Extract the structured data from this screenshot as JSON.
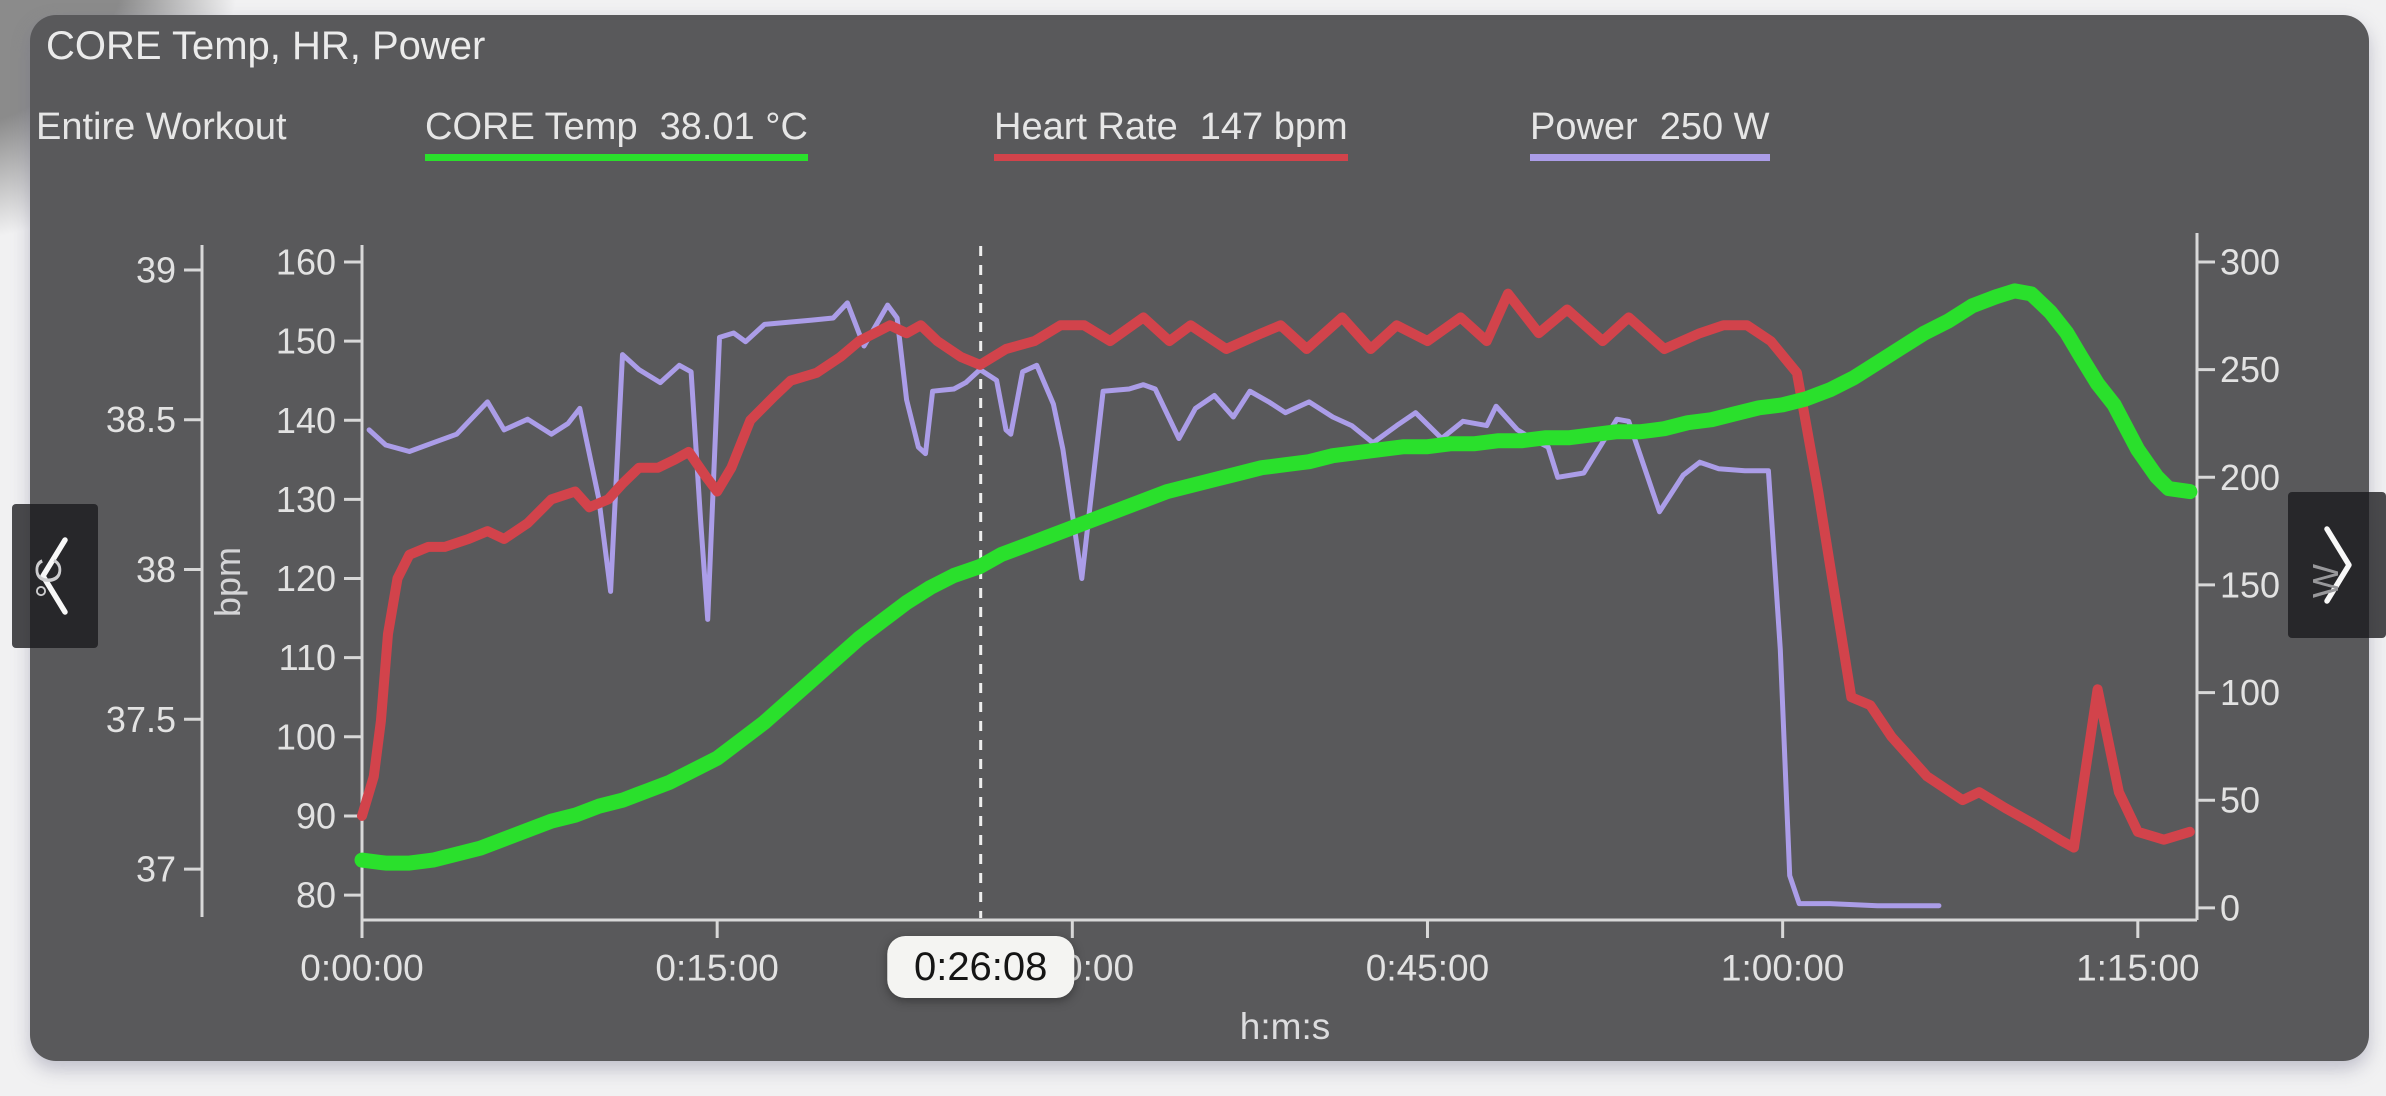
{
  "header": {
    "title": "CORE Temp, HR, Power"
  },
  "legend": {
    "range_label": "Entire Workout"
  },
  "cursor": {
    "time_label": "0:26:08",
    "minutes": 26.13
  },
  "icons": {
    "prev": "chevron-left",
    "next": "chevron-right"
  },
  "colors": {
    "card_background": "#59595b",
    "axis": "#d8d8d8",
    "tick_text": "#e2e2e2",
    "cursor_line": "#eeeeee",
    "tooltip_background": "#f4f4f2",
    "core_temp": "#2ae02c",
    "heart_rate": "#d2434b",
    "power": "#ab9de8"
  },
  "chart_data": {
    "type": "line",
    "title": "CORE Temp, HR, Power",
    "x_axis": {
      "unit": "h:m:s",
      "ticks": [
        "0:00:00",
        "0:15:00",
        "0:30:00",
        "0:45:00",
        "1:00:00",
        "1:15:00"
      ],
      "tick_values": [
        0,
        15,
        30,
        45,
        60,
        75
      ],
      "range": [
        0,
        77.5
      ]
    },
    "y_axes": [
      {
        "id": "temp",
        "unit": "°C",
        "side": "left",
        "ticks": [
          "39",
          "38.5",
          "38",
          "37.5",
          "37"
        ],
        "tick_values": [
          39,
          38.5,
          38,
          37.5,
          37
        ],
        "range": [
          36.83,
          39.1
        ]
      },
      {
        "id": "bpm",
        "unit": "bpm",
        "side": "left",
        "ticks": [
          "160",
          "150",
          "140",
          "130",
          "120",
          "110",
          "100",
          "90",
          "80"
        ],
        "tick_values": [
          160,
          150,
          140,
          130,
          120,
          110,
          100,
          90,
          80
        ],
        "range": [
          76.85,
          162.78
        ]
      },
      {
        "id": "power",
        "unit": "W",
        "side": "right",
        "ticks": [
          "300",
          "250",
          "200",
          "150",
          "100",
          "50",
          "0"
        ],
        "tick_values": [
          300,
          250,
          200,
          150,
          100,
          50,
          0
        ],
        "range": [
          -5.64,
          310.22
        ]
      }
    ],
    "series": [
      {
        "id": "core-temp",
        "name": "CORE Temp",
        "axis": "temp",
        "color": "#2ae02c",
        "stroke_width": 15,
        "current_value": "38.01 °C",
        "points": [
          [
            0,
            37.03
          ],
          [
            1,
            37.02
          ],
          [
            2,
            37.02
          ],
          [
            3,
            37.03
          ],
          [
            4,
            37.05
          ],
          [
            5,
            37.07
          ],
          [
            6,
            37.1
          ],
          [
            7,
            37.13
          ],
          [
            8,
            37.16
          ],
          [
            9,
            37.18
          ],
          [
            10,
            37.21
          ],
          [
            11,
            37.23
          ],
          [
            12,
            37.26
          ],
          [
            13,
            37.29
          ],
          [
            14,
            37.33
          ],
          [
            15,
            37.37
          ],
          [
            16,
            37.43
          ],
          [
            17,
            37.49
          ],
          [
            18,
            37.56
          ],
          [
            19,
            37.63
          ],
          [
            20,
            37.7
          ],
          [
            21,
            37.77
          ],
          [
            22,
            37.83
          ],
          [
            23,
            37.89
          ],
          [
            24,
            37.94
          ],
          [
            25,
            37.98
          ],
          [
            26.1,
            38.01
          ],
          [
            27,
            38.05
          ],
          [
            28,
            38.08
          ],
          [
            29,
            38.11
          ],
          [
            30,
            38.14
          ],
          [
            31,
            38.17
          ],
          [
            32,
            38.2
          ],
          [
            33,
            38.23
          ],
          [
            34,
            38.26
          ],
          [
            35,
            38.28
          ],
          [
            36,
            38.3
          ],
          [
            37,
            38.32
          ],
          [
            38,
            38.34
          ],
          [
            39,
            38.35
          ],
          [
            40,
            38.36
          ],
          [
            41,
            38.38
          ],
          [
            42,
            38.39
          ],
          [
            43,
            38.4
          ],
          [
            44,
            38.41
          ],
          [
            45,
            38.41
          ],
          [
            46,
            38.42
          ],
          [
            47,
            38.42
          ],
          [
            48,
            38.43
          ],
          [
            49,
            38.43
          ],
          [
            50,
            38.44
          ],
          [
            51,
            38.44
          ],
          [
            52,
            38.45
          ],
          [
            53,
            38.46
          ],
          [
            54,
            38.46
          ],
          [
            55,
            38.47
          ],
          [
            56,
            38.49
          ],
          [
            57,
            38.5
          ],
          [
            58,
            38.52
          ],
          [
            59,
            38.54
          ],
          [
            60,
            38.55
          ],
          [
            61,
            38.57
          ],
          [
            62,
            38.6
          ],
          [
            63,
            38.64
          ],
          [
            64,
            38.69
          ],
          [
            65,
            38.74
          ],
          [
            66,
            38.79
          ],
          [
            67,
            38.83
          ],
          [
            68,
            38.88
          ],
          [
            69,
            38.91
          ],
          [
            69.8,
            38.93
          ],
          [
            70.5,
            38.92
          ],
          [
            71.3,
            38.86
          ],
          [
            72,
            38.79
          ],
          [
            72.6,
            38.71
          ],
          [
            73.3,
            38.62
          ],
          [
            74,
            38.55
          ],
          [
            75,
            38.4
          ],
          [
            75.8,
            38.31
          ],
          [
            76.3,
            38.27
          ],
          [
            77.2,
            38.26
          ]
        ]
      },
      {
        "id": "heart-rate",
        "name": "Heart Rate",
        "axis": "bpm",
        "color": "#d2434b",
        "stroke_width": 10,
        "current_value": "147 bpm",
        "points": [
          [
            0,
            90
          ],
          [
            0.5,
            95
          ],
          [
            0.8,
            102
          ],
          [
            1.1,
            113
          ],
          [
            1.5,
            120
          ],
          [
            2,
            123
          ],
          [
            2.8,
            124
          ],
          [
            3.5,
            124
          ],
          [
            4.5,
            125
          ],
          [
            5.3,
            126
          ],
          [
            6,
            125
          ],
          [
            7,
            127
          ],
          [
            8,
            130
          ],
          [
            9,
            131
          ],
          [
            9.6,
            129
          ],
          [
            10.4,
            130
          ],
          [
            11,
            132
          ],
          [
            11.7,
            134
          ],
          [
            12.5,
            134
          ],
          [
            13.2,
            135
          ],
          [
            13.8,
            136
          ],
          [
            14.5,
            133
          ],
          [
            15,
            131
          ],
          [
            15.6,
            134
          ],
          [
            16.4,
            140
          ],
          [
            17.4,
            143
          ],
          [
            18.1,
            145
          ],
          [
            19.2,
            146
          ],
          [
            20.2,
            148
          ],
          [
            21,
            150
          ],
          [
            22.3,
            152
          ],
          [
            23,
            151
          ],
          [
            23.6,
            152
          ],
          [
            24.3,
            150
          ],
          [
            25.3,
            148
          ],
          [
            26.1,
            147
          ],
          [
            27.2,
            149
          ],
          [
            28.4,
            150
          ],
          [
            29.5,
            152
          ],
          [
            30.5,
            152
          ],
          [
            31.6,
            150
          ],
          [
            33,
            153
          ],
          [
            34.1,
            150
          ],
          [
            35,
            152
          ],
          [
            36.5,
            149
          ],
          [
            38,
            151
          ],
          [
            38.8,
            152
          ],
          [
            39.9,
            149
          ],
          [
            41.4,
            153
          ],
          [
            42.6,
            149
          ],
          [
            43.7,
            152
          ],
          [
            45,
            150
          ],
          [
            46.4,
            153
          ],
          [
            47.5,
            150
          ],
          [
            48.4,
            156
          ],
          [
            49.7,
            151
          ],
          [
            50.9,
            154
          ],
          [
            52.4,
            150
          ],
          [
            53.5,
            153
          ],
          [
            55,
            149
          ],
          [
            56.5,
            151
          ],
          [
            57.5,
            152
          ],
          [
            58.5,
            152
          ],
          [
            59.5,
            150
          ],
          [
            60.6,
            146
          ],
          [
            61.5,
            131
          ],
          [
            62.2,
            118
          ],
          [
            62.9,
            105
          ],
          [
            63.7,
            104
          ],
          [
            64.6,
            100
          ],
          [
            66.1,
            95
          ],
          [
            67.6,
            92
          ],
          [
            68.3,
            93
          ],
          [
            69.4,
            91
          ],
          [
            70.6,
            89
          ],
          [
            71.7,
            87
          ],
          [
            72.3,
            86
          ],
          [
            73.3,
            106
          ],
          [
            74.2,
            93
          ],
          [
            75,
            88
          ],
          [
            76.1,
            87
          ],
          [
            77.2,
            88
          ]
        ]
      },
      {
        "id": "power",
        "name": "Power",
        "axis": "power",
        "color": "#ab9de8",
        "stroke_width": 5,
        "current_value": "250 W",
        "points": [
          [
            0.3,
            222
          ],
          [
            1,
            215
          ],
          [
            2,
            212
          ],
          [
            3,
            216
          ],
          [
            4,
            220
          ],
          [
            5.3,
            235
          ],
          [
            6,
            222
          ],
          [
            7,
            227
          ],
          [
            8,
            220
          ],
          [
            8.7,
            225
          ],
          [
            9.2,
            232
          ],
          [
            10,
            190
          ],
          [
            10.5,
            147
          ],
          [
            11,
            257
          ],
          [
            11.7,
            250
          ],
          [
            12.6,
            244
          ],
          [
            13.4,
            252
          ],
          [
            13.9,
            249
          ],
          [
            14.3,
            180
          ],
          [
            14.6,
            134
          ],
          [
            15.1,
            265
          ],
          [
            15.7,
            267
          ],
          [
            16.2,
            263
          ],
          [
            17,
            271
          ],
          [
            18,
            272
          ],
          [
            19,
            273
          ],
          [
            19.9,
            274
          ],
          [
            20.5,
            281
          ],
          [
            21.2,
            261
          ],
          [
            22.2,
            280
          ],
          [
            22.6,
            274
          ],
          [
            23,
            236
          ],
          [
            23.5,
            214
          ],
          [
            23.8,
            211
          ],
          [
            24.1,
            240
          ],
          [
            25,
            241
          ],
          [
            25.5,
            244
          ],
          [
            26.1,
            250
          ],
          [
            26.8,
            245
          ],
          [
            27.2,
            222
          ],
          [
            27.4,
            220
          ],
          [
            27.9,
            249
          ],
          [
            28.5,
            252
          ],
          [
            29.2,
            234
          ],
          [
            29.6,
            213
          ],
          [
            30.4,
            153
          ],
          [
            31.3,
            240
          ],
          [
            32.4,
            241
          ],
          [
            33,
            243
          ],
          [
            33.5,
            241
          ],
          [
            34.5,
            218
          ],
          [
            35.2,
            232
          ],
          [
            36,
            238
          ],
          [
            36.8,
            228
          ],
          [
            37.5,
            240
          ],
          [
            38.3,
            235
          ],
          [
            39,
            230
          ],
          [
            40,
            235
          ],
          [
            41,
            228
          ],
          [
            41.8,
            224
          ],
          [
            42.7,
            216
          ],
          [
            43.7,
            224
          ],
          [
            44.5,
            230
          ],
          [
            45.6,
            218
          ],
          [
            46.5,
            226
          ],
          [
            47.5,
            224
          ],
          [
            47.9,
            233
          ],
          [
            48.8,
            222
          ],
          [
            49.4,
            218
          ],
          [
            50.1,
            214
          ],
          [
            50.5,
            200
          ],
          [
            51.6,
            202
          ],
          [
            53,
            227
          ],
          [
            53.5,
            226
          ],
          [
            54.8,
            184
          ],
          [
            55.8,
            201
          ],
          [
            56.5,
            207
          ],
          [
            57.3,
            204
          ],
          [
            58.4,
            203
          ],
          [
            59.4,
            203
          ],
          [
            59.9,
            120
          ],
          [
            60.3,
            15
          ],
          [
            60.7,
            2
          ],
          [
            62,
            2
          ],
          [
            64,
            1
          ],
          [
            66.6,
            1
          ]
        ]
      }
    ],
    "legend_position": "top",
    "grid": false
  }
}
